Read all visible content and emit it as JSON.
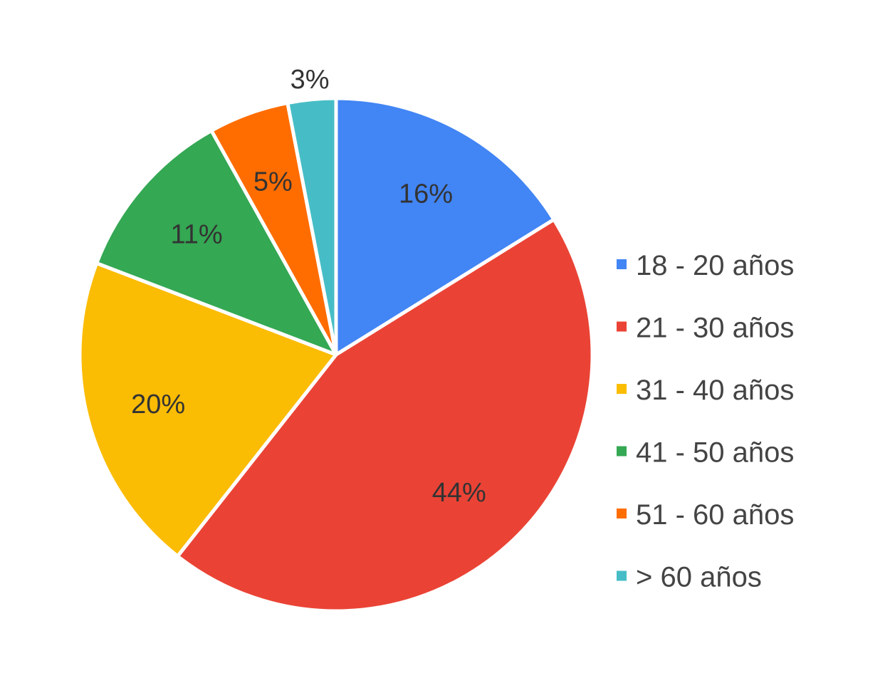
{
  "chart_data": {
    "type": "pie",
    "categories": [
      "18 - 20 años",
      "21 - 30 años",
      "31 - 40 años",
      "41 - 50 años",
      "51 - 60 años",
      "> 60 años"
    ],
    "values": [
      16,
      44,
      20,
      11,
      5,
      3
    ],
    "labels": [
      "16%",
      "44%",
      "20%",
      "11%",
      "5%",
      "3%"
    ],
    "colors": [
      "#4285f4",
      "#ea4335",
      "#fbbc04",
      "#34a853",
      "#ff6d01",
      "#46bdc6"
    ],
    "start": "top, clockwise",
    "legend_position": "right"
  }
}
